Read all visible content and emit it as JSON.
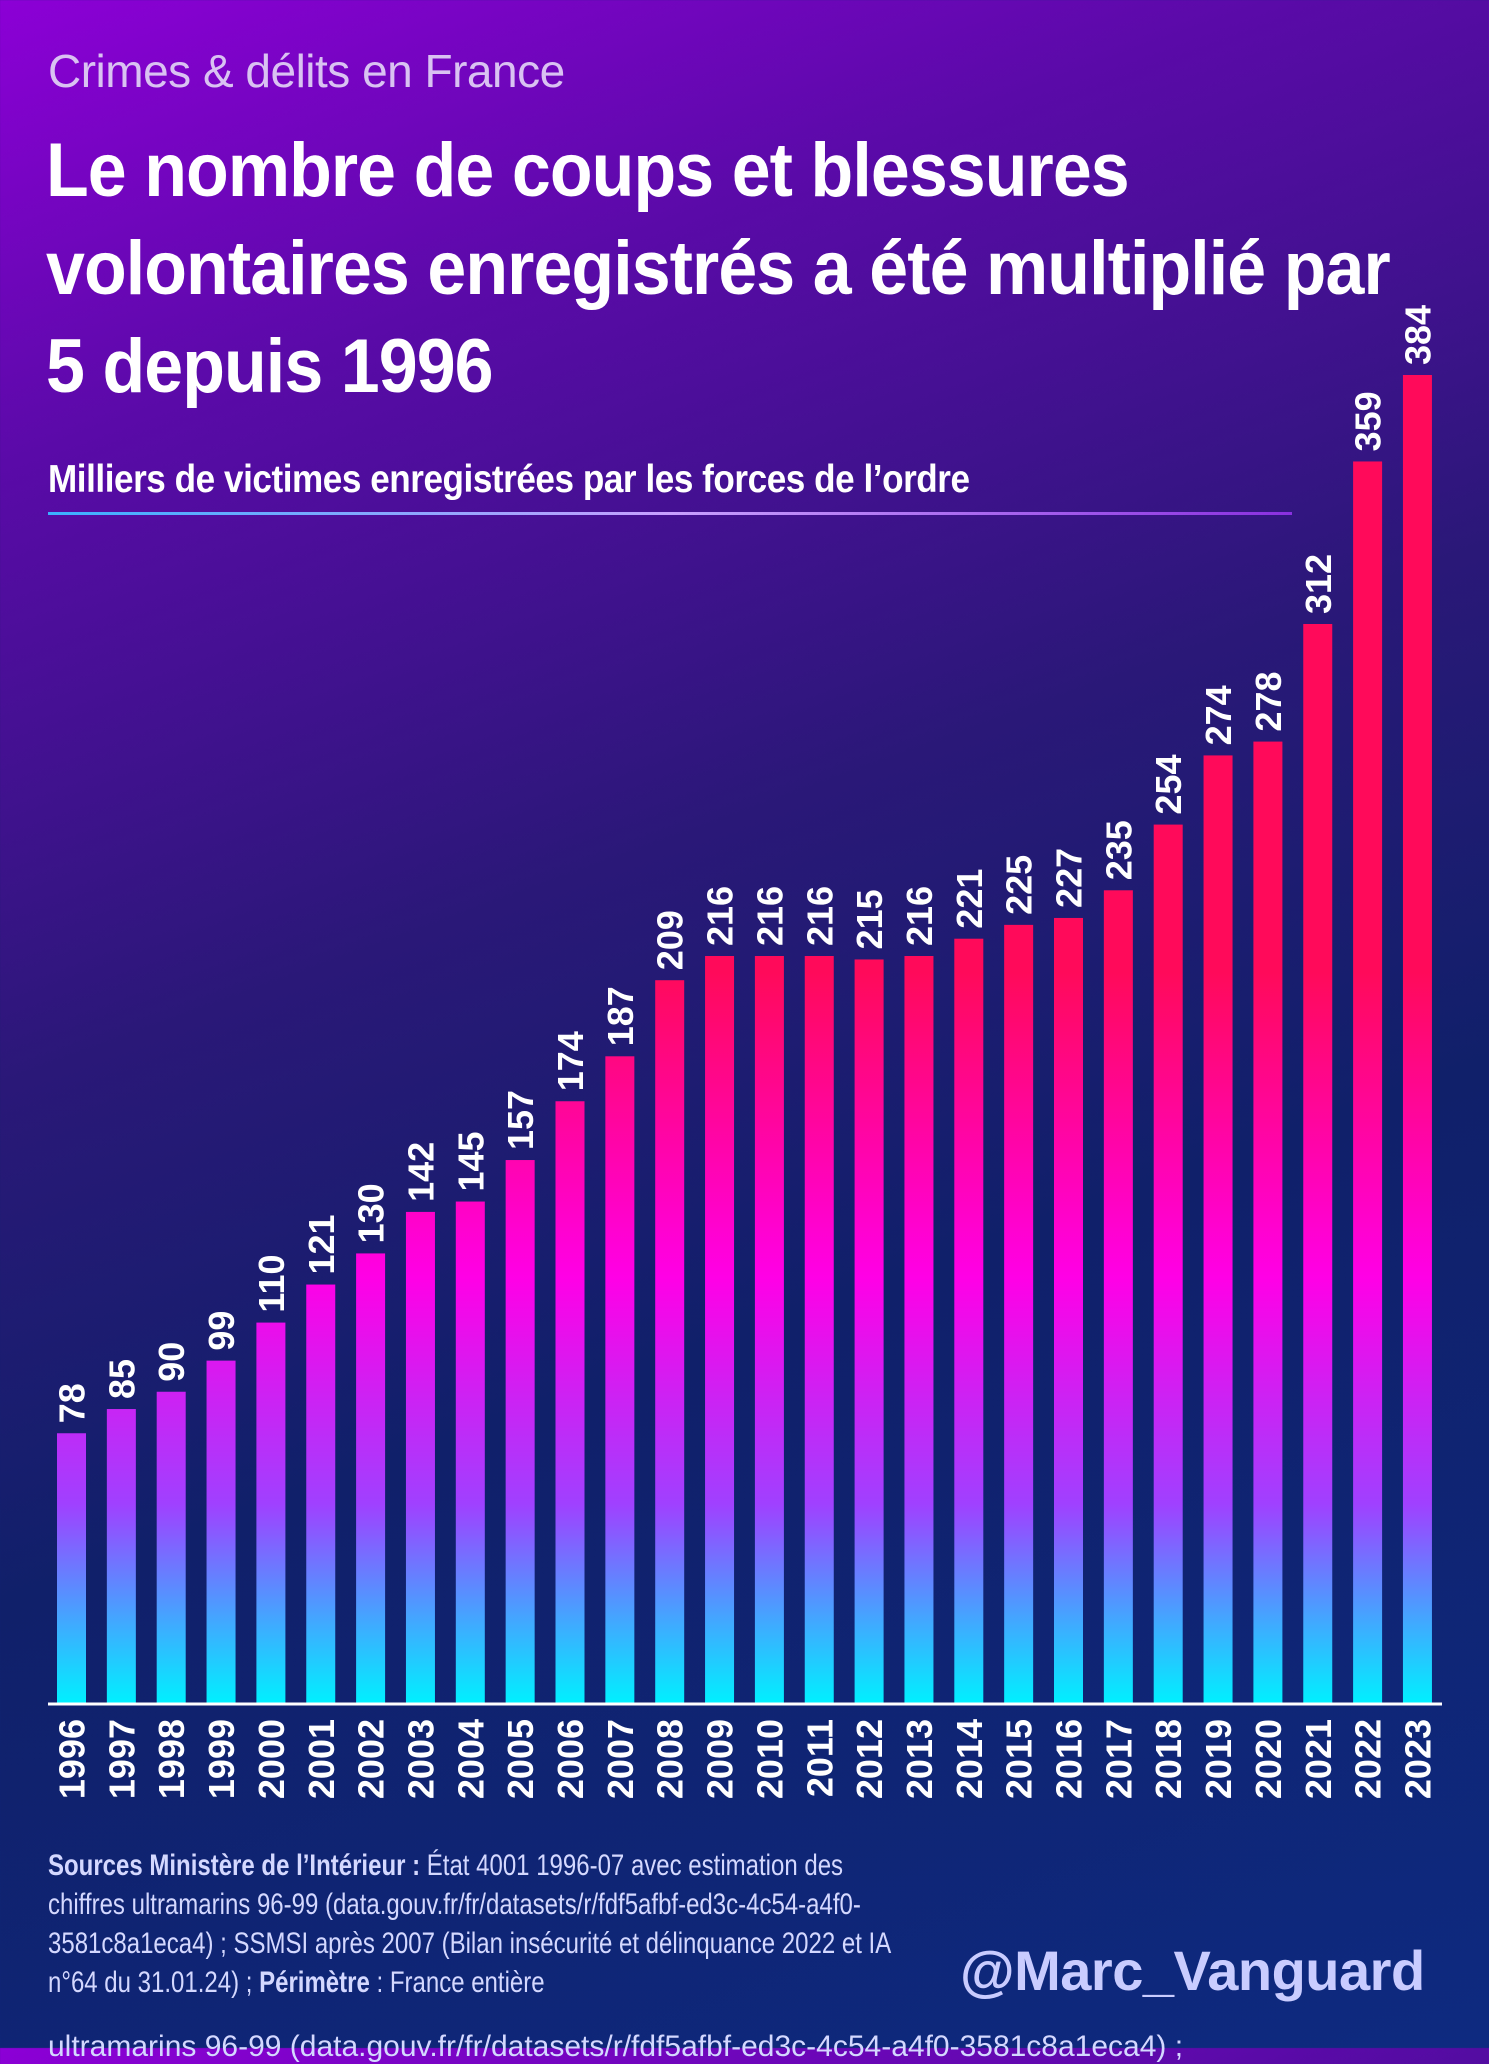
{
  "header": {
    "kicker": "Crimes & délits en France",
    "title": "Le nombre de coups et blessures volontaires enregistrés a été multiplié par 5 depuis 1996",
    "subtitle": "Milliers de victimes enregistrées par les forces de l’ordre"
  },
  "chart_data": {
    "type": "bar",
    "title": "Le nombre de coups et blessures volontaires enregistrés a été multiplié par 5 depuis 1996",
    "ylabel": "Milliers de victimes enregistrées par les forces de l’ordre",
    "categories": [
      "1996",
      "1997",
      "1998",
      "1999",
      "2000",
      "2001",
      "2002",
      "2003",
      "2004",
      "2005",
      "2006",
      "2007",
      "2008",
      "2009",
      "2010",
      "2011",
      "2012",
      "2013",
      "2014",
      "2015",
      "2016",
      "2017",
      "2018",
      "2019",
      "2020",
      "2021",
      "2022",
      "2023"
    ],
    "values": [
      78,
      85,
      90,
      99,
      110,
      121,
      130,
      142,
      145,
      157,
      174,
      187,
      209,
      216,
      216,
      216,
      215,
      216,
      221,
      225,
      227,
      235,
      254,
      274,
      278,
      312,
      359,
      384
    ],
    "ylim": [
      0,
      384
    ],
    "grid": false,
    "data_labels": true,
    "colors": {
      "bar_top": "#ff0a5a",
      "bar_mid": "#ff00e6",
      "bar_low": "#a040ff",
      "bar_bottom": "#00f0ff"
    }
  },
  "footer": {
    "source_label": "Sources Ministère de l’Intérieur :",
    "source_text": " État 4001 1996-07 avec estimation des chiffres ultramarins 96-99 (data.gouv.fr/fr/datasets/r/fdf5afbf-ed3c-4c54-a4f0-3581c8a1eca4) ; SSMSI après 2007 (Bilan insécurité et délinquance 2022 et IA n°64 du 31.01.24) ; ",
    "perimeter_label": "Périmètre",
    "perimeter_text": " : France entière",
    "cutoff_line": "ultramarins 96-99 (data.gouv.fr/fr/datasets/r/fdf5afbf-ed3c-4c54-a4f0-3581c8a1eca4) ;",
    "handle": "@Marc_Vanguard"
  }
}
